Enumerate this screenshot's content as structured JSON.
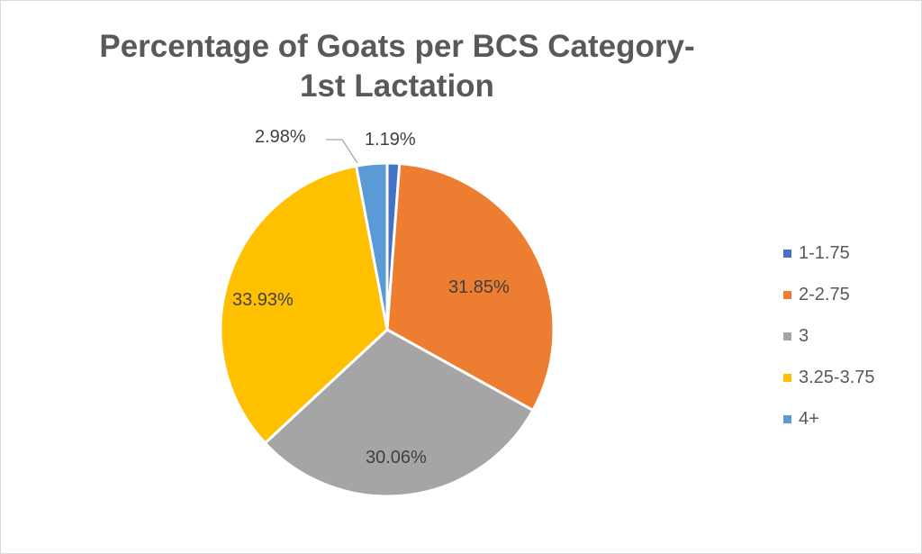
{
  "chart_data": {
    "type": "pie",
    "title": "Percentage of Goats per BCS Category-1st Lactation",
    "title_lines": [
      "Percentage of Goats per BCS Category-",
      "1st Lactation"
    ],
    "categories": [
      "1-1.75",
      "2-2.75",
      "3",
      "3.25-3.75",
      "4+"
    ],
    "values": [
      1.19,
      31.85,
      30.06,
      33.93,
      2.98
    ],
    "value_labels": [
      "1.19%",
      "31.85%",
      "30.06%",
      "33.93%",
      "2.98%"
    ],
    "colors": [
      "#4472C4",
      "#ED7D31",
      "#A5A5A5",
      "#FFC000",
      "#5B9BD5"
    ],
    "legend_position": "right"
  }
}
